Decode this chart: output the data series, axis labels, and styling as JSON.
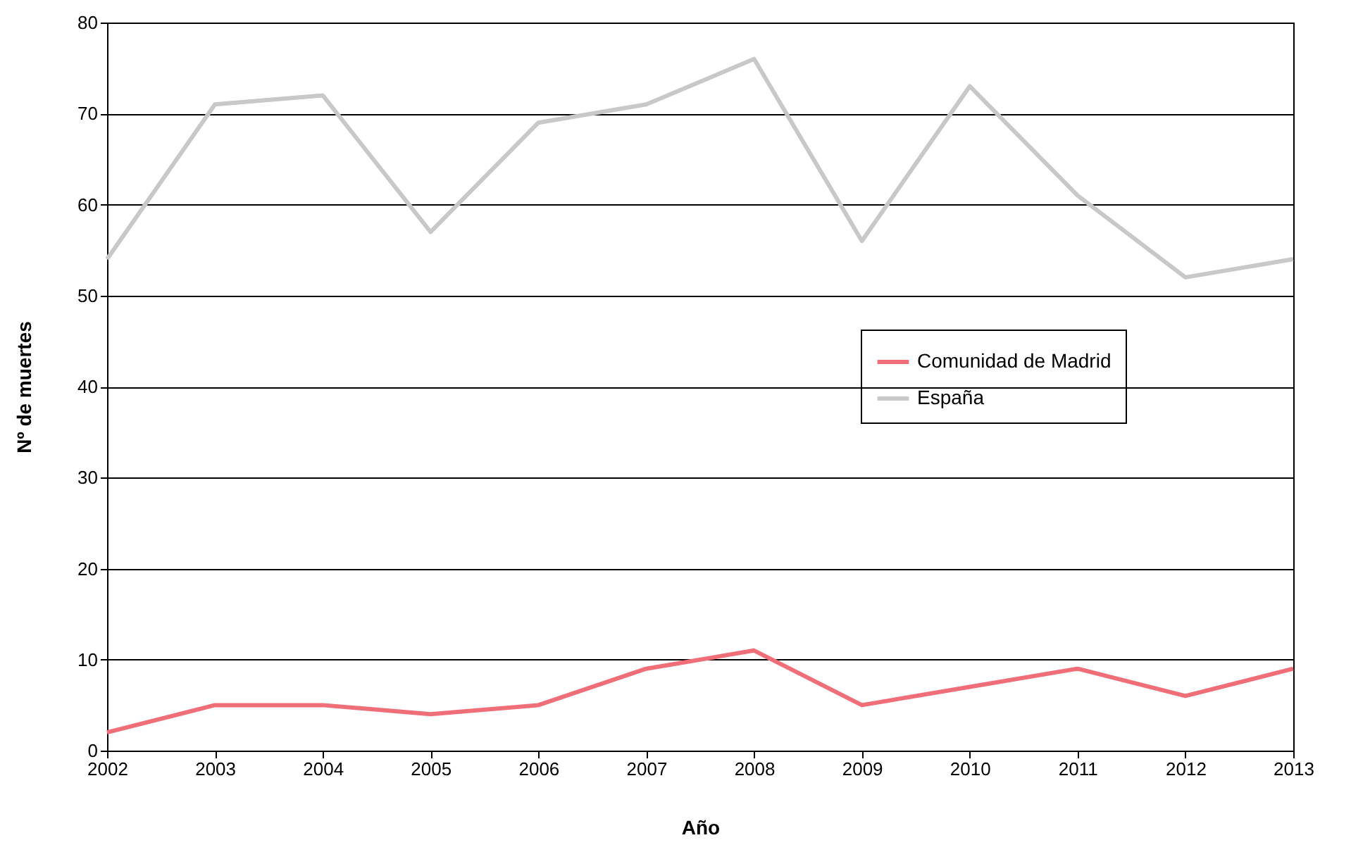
{
  "chart_data": {
    "type": "line",
    "xlabel": "Año",
    "ylabel": "Nº de muertes",
    "x": [
      2002,
      2003,
      2004,
      2005,
      2006,
      2007,
      2008,
      2009,
      2010,
      2011,
      2012,
      2013
    ],
    "series": [
      {
        "name": "Comunidad de Madrid",
        "color": "#f06e78",
        "values": [
          2,
          5,
          5,
          4,
          5,
          9,
          11,
          5,
          7,
          9,
          6,
          9
        ]
      },
      {
        "name": "España",
        "color": "#c8c8c8",
        "values": [
          54,
          71,
          72,
          57,
          69,
          71,
          76,
          56,
          73,
          61,
          52,
          54
        ]
      }
    ],
    "xlim": [
      2002,
      2013
    ],
    "xticks": [
      2002,
      2003,
      2004,
      2005,
      2006,
      2007,
      2008,
      2009,
      2010,
      2011,
      2012,
      2013
    ],
    "ylim": [
      0,
      80
    ],
    "yticks": [
      0,
      10,
      20,
      30,
      40,
      50,
      60,
      70,
      80
    ],
    "grid": "y",
    "legend": "right"
  }
}
